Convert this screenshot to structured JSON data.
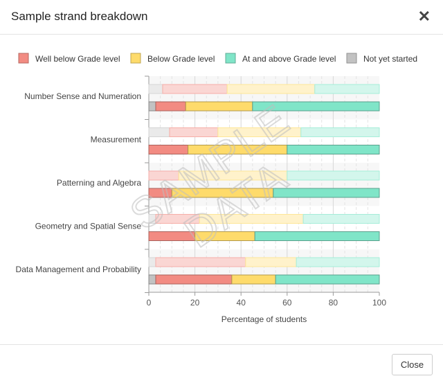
{
  "modal": {
    "title": "Sample strand breakdown",
    "close_icon": "close-icon",
    "close_button_label": "Close"
  },
  "chart_data": {
    "type": "bar",
    "orientation": "horizontal",
    "stacked": true,
    "watermark": "SAMPLE DATA",
    "xlabel": "Percentage of students",
    "xlim": [
      0,
      100
    ],
    "xticks": [
      0,
      20,
      40,
      60,
      80,
      100
    ],
    "grid": true,
    "legend_position": "top",
    "series_order_in_bar": [
      "Not yet started",
      "Well below Grade level",
      "Below Grade level",
      "At and above Grade level"
    ],
    "legend": [
      {
        "name": "Well below Grade level",
        "color": "#f28b82"
      },
      {
        "name": "Below Grade level",
        "color": "#fedb6b"
      },
      {
        "name": "At and above Grade level",
        "color": "#80e5c8"
      },
      {
        "name": "Not yet started",
        "color": "#c2c2c2"
      }
    ],
    "categories": [
      {
        "name": "Number Sense and Numeration",
        "rows": [
          [
            6,
            28,
            38,
            28
          ],
          [
            3,
            13,
            29,
            55
          ]
        ]
      },
      {
        "name": "Measurement",
        "rows": [
          [
            9,
            21,
            36,
            34
          ],
          [
            0,
            17,
            43,
            40
          ]
        ]
      },
      {
        "name": "Patterning and Algebra",
        "rows": [
          [
            0,
            13,
            47,
            40
          ],
          [
            0,
            10,
            44,
            46
          ]
        ]
      },
      {
        "name": "Geometry and Spatial Sense",
        "rows": [
          [
            3,
            19,
            45,
            33
          ],
          [
            0,
            20,
            26,
            54
          ]
        ]
      },
      {
        "name": "Data Management and Probability",
        "rows": [
          [
            3,
            39,
            22,
            36
          ],
          [
            3,
            33,
            19,
            45
          ]
        ]
      }
    ]
  }
}
